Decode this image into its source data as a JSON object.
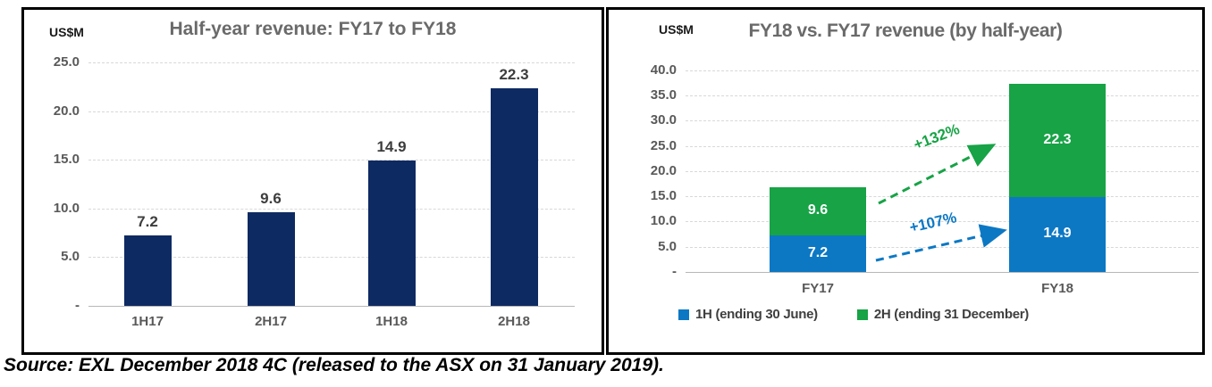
{
  "source_note": "Source: EXL December 2018 4C (released to the ASX on 31 January 2019).",
  "colors": {
    "navy": "#0E2A62",
    "blue": "#0C78C4",
    "green": "#17A346",
    "title_gray": "#6A6A6A",
    "tick_gray": "#595959",
    "value_label_dark": "#3D3D3D",
    "segment_label_white": "#FFFFFF",
    "gridline": "#D8D8D8",
    "panel_border": "#000000"
  },
  "chart_data": [
    {
      "type": "bar",
      "title": "Half-year revenue: FY17 to FY18",
      "axis_label": "US$M",
      "categories": [
        "1H17",
        "2H17",
        "1H18",
        "2H18"
      ],
      "values": [
        7.2,
        9.6,
        14.9,
        22.3
      ],
      "data_labels": [
        "7.2",
        "9.6",
        "14.9",
        "22.3"
      ],
      "bar_color": "#0E2A62",
      "ylim": [
        0,
        25
      ],
      "ytick_interval": 5,
      "ytick_labels": [
        "-",
        "5.0",
        "10.0",
        "15.0",
        "20.0",
        "25.0"
      ],
      "grid": "horizontal dashed",
      "legend": "none"
    },
    {
      "type": "stacked-bar",
      "title": "FY18 vs. FY17 revenue (by half-year)",
      "axis_label": "US$M",
      "categories": [
        "FY17",
        "FY18"
      ],
      "series": [
        {
          "name": "1H (ending 30 June)",
          "values": [
            7.2,
            14.9
          ],
          "color": "#0C78C4",
          "data_labels": [
            "7.2",
            "14.9"
          ]
        },
        {
          "name": "2H (ending 31 December)",
          "values": [
            9.6,
            22.3
          ],
          "color": "#17A346",
          "data_labels": [
            "9.6",
            "22.3"
          ]
        }
      ],
      "ylim": [
        0,
        40
      ],
      "ytick_interval": 5,
      "ytick_labels": [
        "-",
        "5.0",
        "10.0",
        "15.0",
        "20.0",
        "25.0",
        "30.0",
        "35.0",
        "40.0"
      ],
      "grid": "horizontal dashed",
      "legend_position": "bottom",
      "annotations": [
        {
          "label": "+132%",
          "color": "#17A346"
        },
        {
          "label": "+107%",
          "color": "#0C78C4"
        }
      ]
    }
  ]
}
